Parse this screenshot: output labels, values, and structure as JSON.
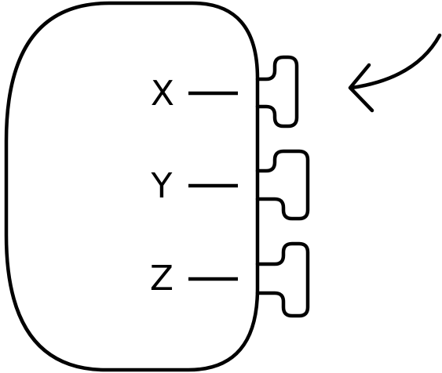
{
  "diagram": {
    "labels": [
      "X",
      "Y",
      "Z"
    ],
    "stroke_color": "#000000",
    "background_color": "#ffffff"
  }
}
